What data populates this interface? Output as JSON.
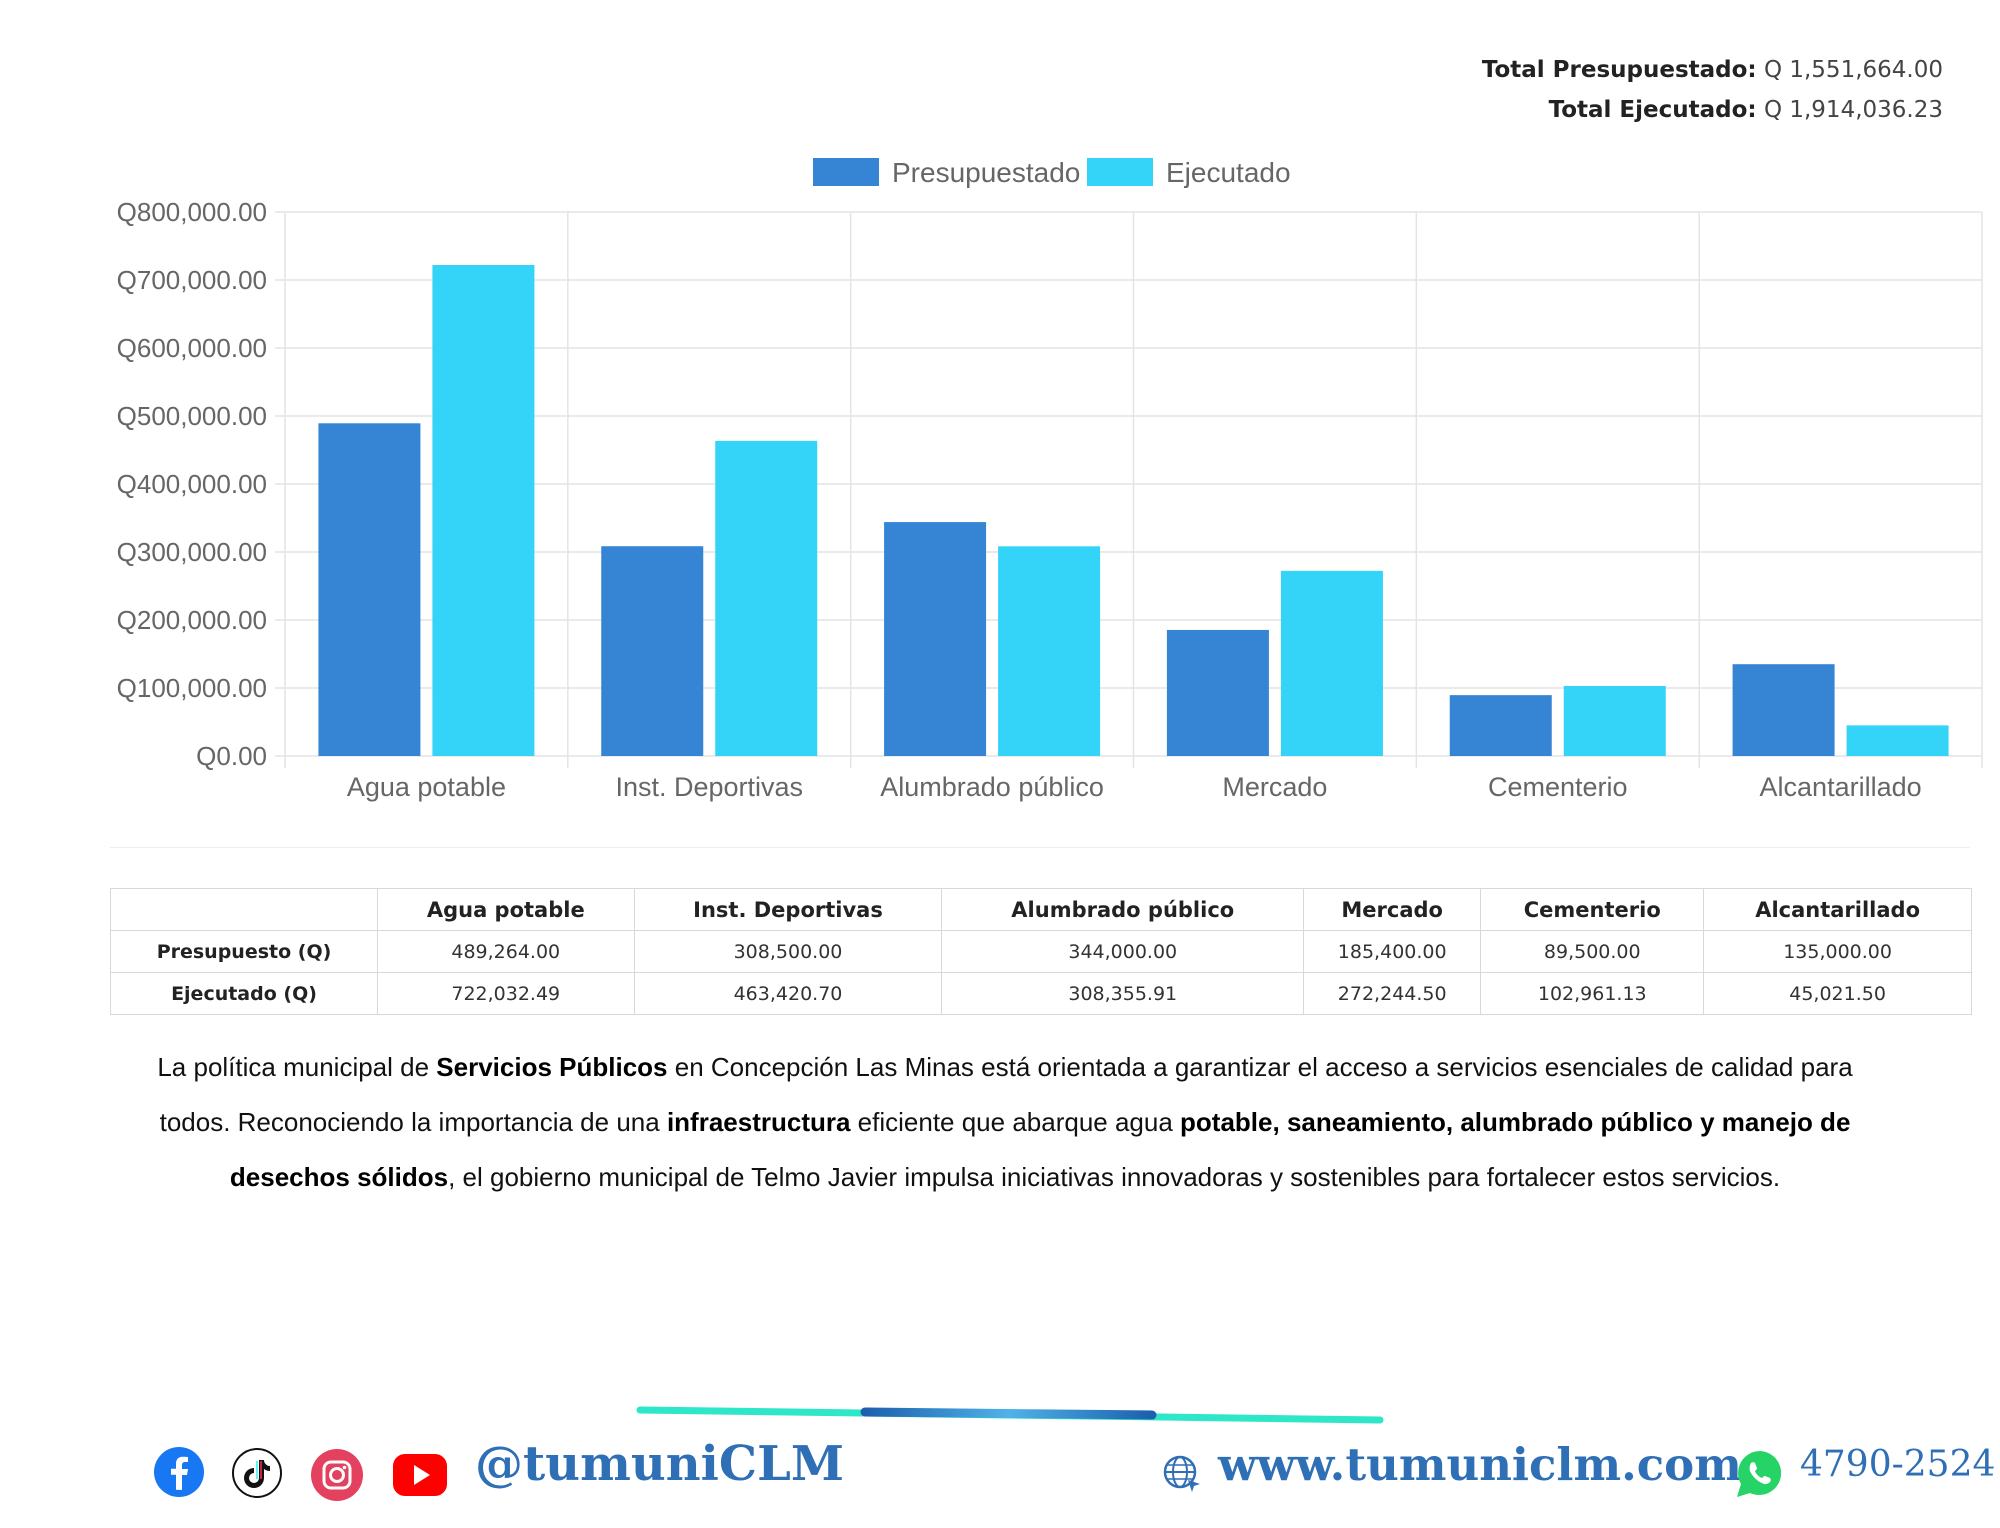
{
  "totals": {
    "budget_label": "Total Presupuestado:",
    "budget_value": "Q 1,551,664.00",
    "executed_label": "Total Ejecutado:",
    "executed_value": "Q 1,914,036.23"
  },
  "chart_data": {
    "type": "bar",
    "categories": [
      "Agua potable",
      "Inst. Deportivas",
      "Alumbrado público",
      "Mercado",
      "Cementerio",
      "Alcantarillado"
    ],
    "series": [
      {
        "name": "Presupuestado",
        "values": [
          489264.0,
          308500.0,
          344000.0,
          185400.0,
          89500.0,
          135000.0
        ]
      },
      {
        "name": "Ejecutado",
        "values": [
          722032.49,
          463420.7,
          308355.91,
          272244.5,
          102961.13,
          45021.5
        ]
      }
    ],
    "ylim": [
      0,
      800000
    ],
    "yticks": [
      "Q0.00",
      "Q100,000.00",
      "Q200,000.00",
      "Q300,000.00",
      "Q400,000.00",
      "Q500,000.00",
      "Q600,000.00",
      "Q700,000.00",
      "Q800,000.00"
    ],
    "grid": true,
    "legend": "top-center",
    "colors": {
      "Presupuestado": "#3684d4",
      "Ejecutado": "#34d3f8"
    }
  },
  "table": {
    "headers": [
      "",
      "Agua potable",
      "Inst. Deportivas",
      "Alumbrado público",
      "Mercado",
      "Cementerio",
      "Alcantarillado"
    ],
    "rows": [
      {
        "label": "Presupuesto (Q)",
        "cells": [
          "489,264.00",
          "308,500.00",
          "344,000.00",
          "185,400.00",
          "89,500.00",
          "135,000.00"
        ]
      },
      {
        "label": "Ejecutado (Q)",
        "cells": [
          "722,032.49",
          "463,420.70",
          "308,355.91",
          "272,244.50",
          "102,961.13",
          "45,021.50"
        ]
      }
    ]
  },
  "paragraph": {
    "p1": "La política municipal de ",
    "b1": "Servicios Públicos",
    "p2": " en Concepción Las Minas está orientada a garantizar el acceso a servicios esenciales de calidad para todos. Reconociendo la importancia de una ",
    "b2": "infraestructura",
    "p3": " eficiente que abarque agua ",
    "b3": "potable, saneamiento, alumbrado público y manejo de desechos sólidos",
    "p4": ", el gobierno municipal de Telmo Javier impulsa iniciativas innovadoras y sostenibles para fortalecer estos servicios."
  },
  "footer": {
    "social_icons": [
      "facebook-icon",
      "tiktok-icon",
      "instagram-icon",
      "youtube-icon"
    ],
    "handle": "@tumuniCLM",
    "website": "www.tumuniclm.com",
    "phone": "4790-2524"
  }
}
